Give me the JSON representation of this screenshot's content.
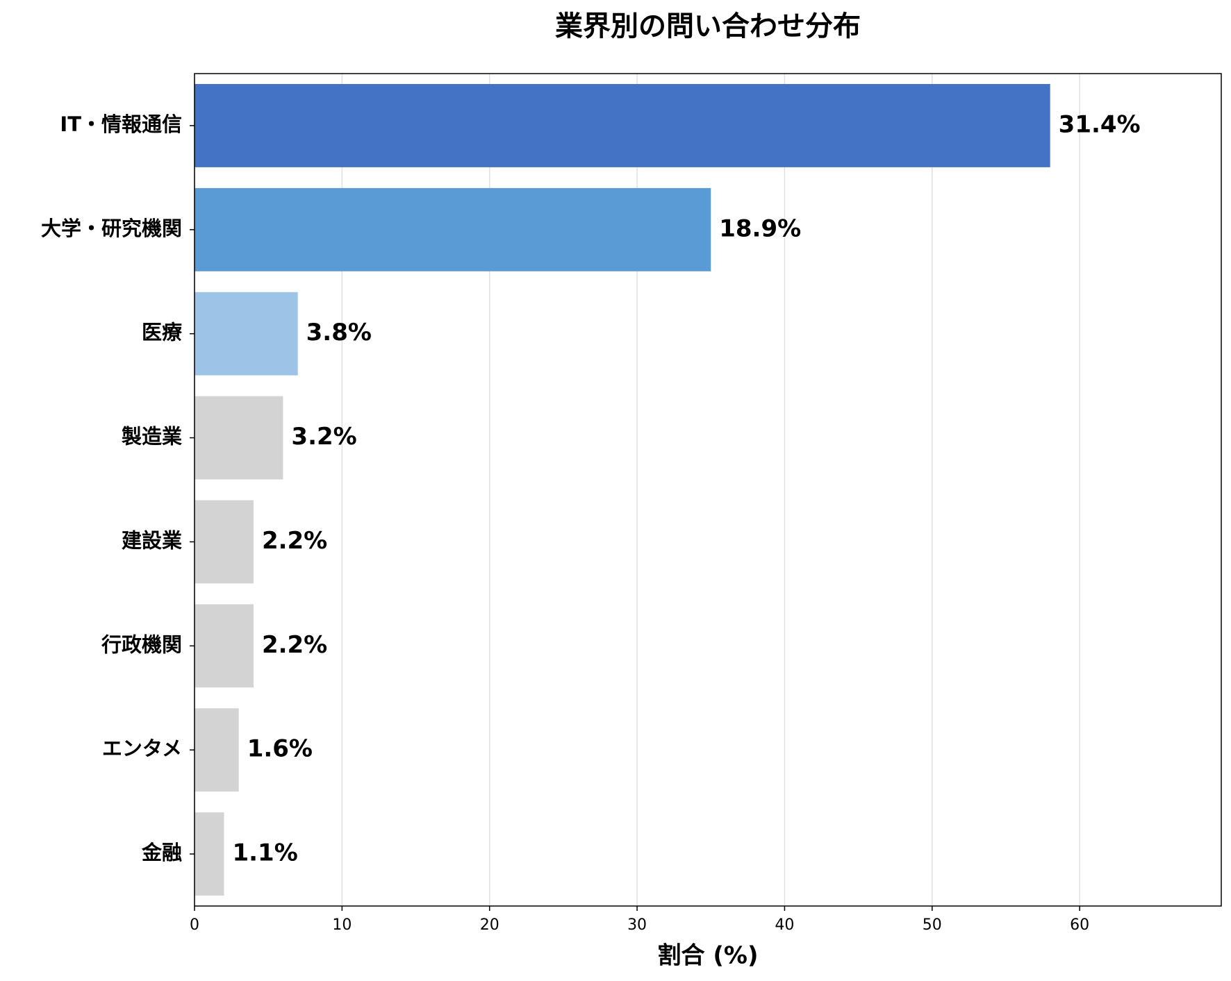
{
  "chart_data": {
    "type": "bar",
    "orientation": "horizontal",
    "title": "業界別の問い合わせ分布",
    "xlabel": "割合 (%)",
    "categories": [
      "IT・情報通信",
      "大学・研究機関",
      "医療",
      "製造業",
      "建設業",
      "行政機関",
      "エンタメ",
      "金融"
    ],
    "values": [
      58,
      35,
      7,
      6,
      4,
      4,
      3,
      2
    ],
    "value_labels": [
      "31.4%",
      "18.9%",
      "3.8%",
      "3.2%",
      "2.2%",
      "2.2%",
      "1.6%",
      "1.1%"
    ],
    "colors": [
      "#4472c4",
      "#5b9bd5",
      "#9dc3e6",
      "#d3d3d3",
      "#d3d3d3",
      "#d3d3d3",
      "#d3d3d3",
      "#d3d3d3"
    ],
    "xlim": [
      0,
      69.6
    ],
    "xticks": [
      0,
      10,
      20,
      30,
      40,
      50,
      60
    ],
    "grid": true
  }
}
